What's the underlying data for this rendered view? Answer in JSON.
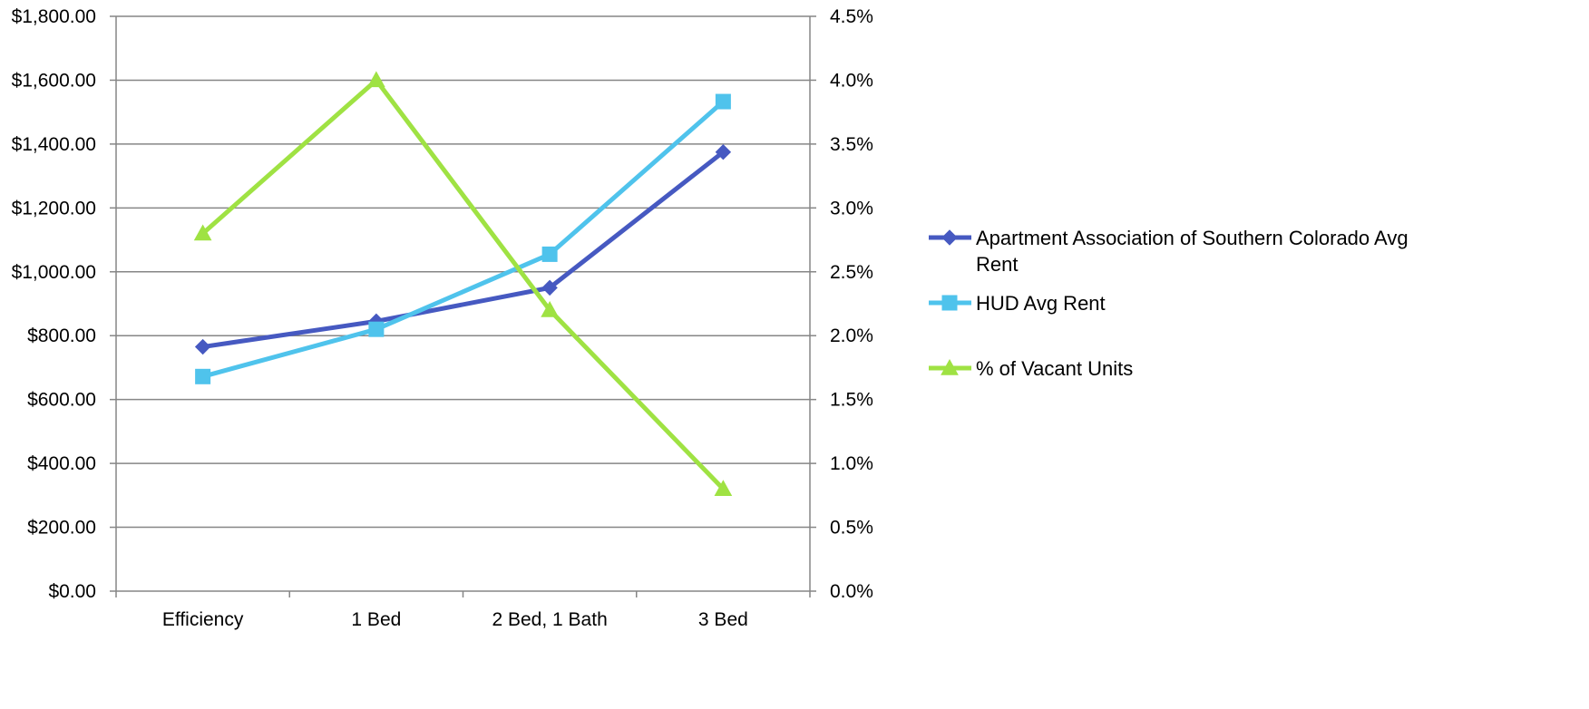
{
  "chart_data": {
    "type": "line",
    "categories": [
      "Efficiency",
      "1 Bed",
      "2 Bed, 1 Bath",
      "3 Bed"
    ],
    "series": [
      {
        "name": "Apartment Association of Southern Colorado Avg Rent",
        "axis": "left",
        "marker": "diamond",
        "color": "#4659C1",
        "values": [
          765,
          845,
          950,
          1375
        ]
      },
      {
        "name": "HUD Avg Rent",
        "axis": "left",
        "marker": "square",
        "color": "#4FC3EC",
        "values": [
          672,
          820,
          1055,
          1533
        ]
      },
      {
        "name": "% of Vacant Units",
        "axis": "right",
        "marker": "triangle",
        "color": "#9FE243",
        "values": [
          2.8,
          4.0,
          2.2,
          0.8
        ]
      }
    ],
    "y_left": {
      "ylim": [
        0,
        1800
      ],
      "ticks": [
        0,
        200,
        400,
        600,
        800,
        1000,
        1200,
        1400,
        1600,
        1800
      ],
      "tick_labels": [
        "$0.00",
        "$200.00",
        "$400.00",
        "$600.00",
        "$800.00",
        "$1,000.00",
        "$1,200.00",
        "$1,400.00",
        "$1,600.00",
        "$1,800.00"
      ]
    },
    "y_right": {
      "ylim": [
        0,
        4.5
      ],
      "ticks": [
        0,
        0.5,
        1.0,
        1.5,
        2.0,
        2.5,
        3.0,
        3.5,
        4.0,
        4.5
      ],
      "tick_labels": [
        "0.0%",
        "0.5%",
        "1.0%",
        "1.5%",
        "2.0%",
        "2.5%",
        "3.0%",
        "3.5%",
        "4.0%",
        "4.5%"
      ]
    },
    "grid": true,
    "legend_position": "right",
    "legend": [
      {
        "lines": [
          "Apartment Association of Southern Colorado Avg",
          "Rent"
        ]
      },
      {
        "lines": [
          "HUD Avg Rent"
        ]
      },
      {
        "lines": [
          "% of Vacant Units"
        ]
      }
    ],
    "colors": {
      "grid": "#868686",
      "axis": "#868686"
    }
  }
}
